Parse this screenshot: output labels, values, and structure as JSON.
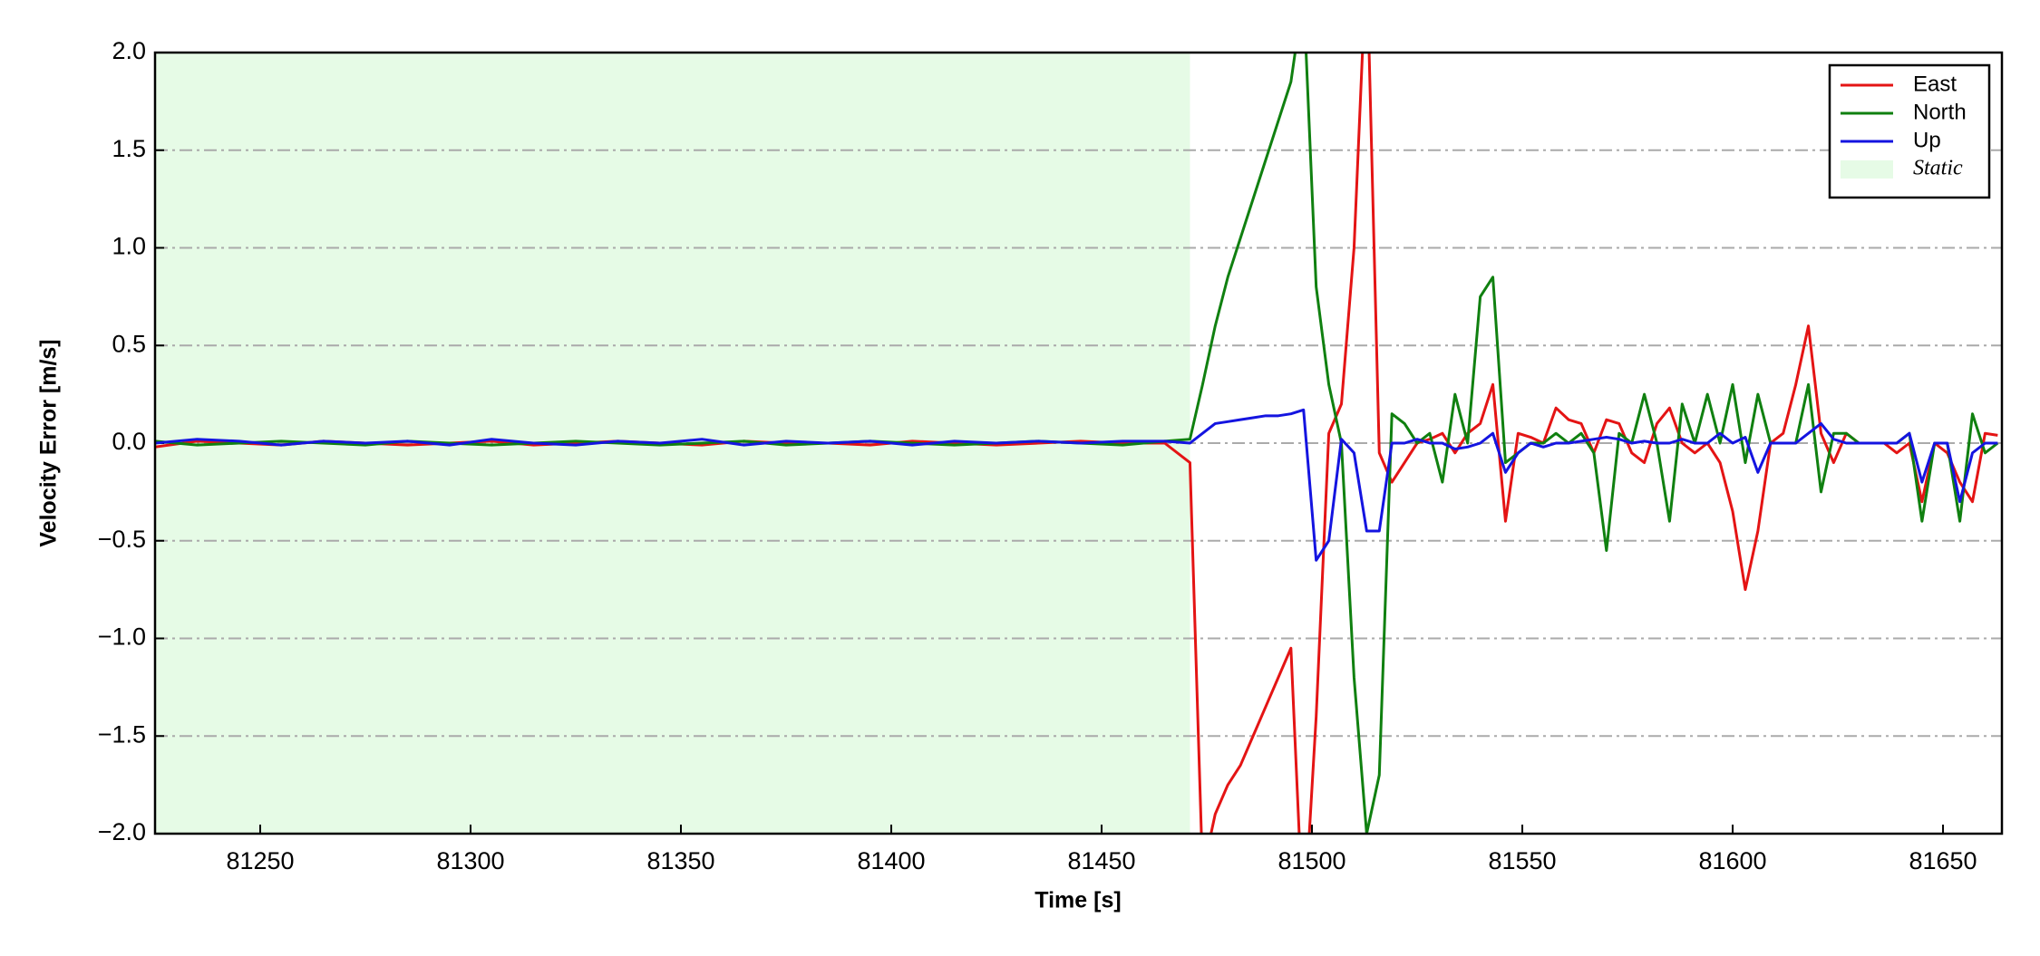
{
  "chart_data": {
    "type": "line",
    "x_label": "Time [s]",
    "y_label": "Velocity Error [m/s]",
    "xlim": [
      81225,
      81664
    ],
    "ylim": [
      -2,
      2
    ],
    "xticks": [
      81250,
      81300,
      81350,
      81400,
      81450,
      81500,
      81550,
      81600,
      81650
    ],
    "yticks": [
      {
        "value": -2,
        "label": "−2.0"
      },
      {
        "value": -1.5,
        "label": "−1.5"
      },
      {
        "value": -1,
        "label": "−1.0"
      },
      {
        "value": -0.5,
        "label": "−0.5"
      },
      {
        "value": 0,
        "label": "0.0"
      },
      0.5,
      {
        "value": 1,
        "label": "1.0"
      },
      1.5,
      {
        "value": 2,
        "label": "2.0"
      }
    ],
    "grid": true,
    "legend": "upper right",
    "shaded_region": {
      "name": "Static",
      "x": [
        81225,
        81471
      ],
      "color": "#e6fbe6"
    },
    "x": [
      81225,
      81235,
      81245,
      81255,
      81265,
      81275,
      81285,
      81295,
      81305,
      81315,
      81325,
      81335,
      81345,
      81355,
      81365,
      81375,
      81385,
      81395,
      81405,
      81415,
      81425,
      81435,
      81445,
      81455,
      81465,
      81471,
      81474,
      81477,
      81480,
      81483,
      81486,
      81489,
      81492,
      81495,
      81498,
      81501,
      81504,
      81507,
      81510,
      81513,
      81516,
      81519,
      81522,
      81525,
      81528,
      81531,
      81534,
      81537,
      81540,
      81543,
      81546,
      81549,
      81552,
      81555,
      81558,
      81561,
      81564,
      81567,
      81570,
      81573,
      81576,
      81579,
      81582,
      81585,
      81588,
      81591,
      81594,
      81597,
      81600,
      81603,
      81606,
      81609,
      81612,
      81615,
      81618,
      81621,
      81624,
      81627,
      81630,
      81633,
      81636,
      81639,
      81642,
      81645,
      81648,
      81651,
      81654,
      81657,
      81660,
      81663
    ],
    "series": [
      {
        "name": "East",
        "color": "#e41414",
        "values": [
          -0.02,
          0.01,
          0,
          -0.01,
          0.01,
          0,
          -0.01,
          0,
          0.01,
          -0.01,
          0,
          0.01,
          0,
          -0.01,
          0.01,
          0,
          0,
          -0.01,
          0.01,
          0,
          -0.01,
          0,
          0.01,
          0,
          0,
          -0.1,
          -2.2,
          -1.9,
          -1.75,
          -1.65,
          -1.5,
          -1.35,
          -1.2,
          -1.05,
          -2.5,
          -1.4,
          0.05,
          0.2,
          1.0,
          2.5,
          -0.05,
          -0.2,
          -0.1,
          0,
          0.02,
          0.05,
          -0.05,
          0.05,
          0.1,
          0.3,
          -0.4,
          0.05,
          0.03,
          0,
          0.18,
          0.12,
          0.1,
          -0.05,
          0.12,
          0.1,
          -0.05,
          -0.1,
          0.1,
          0.18,
          0,
          -0.05,
          0,
          -0.1,
          -0.35,
          -0.75,
          -0.45,
          0,
          0.05,
          0.3,
          0.6,
          0.05,
          -0.1,
          0.05,
          0,
          0,
          0,
          -0.05,
          0,
          -0.3,
          0,
          -0.05,
          -0.2,
          -0.3,
          0.05,
          0.04
        ]
      },
      {
        "name": "North",
        "color": "#108010",
        "values": [
          0.01,
          -0.01,
          0,
          0.01,
          0,
          -0.01,
          0.01,
          0,
          -0.01,
          0,
          0.01,
          0,
          -0.01,
          0,
          0.01,
          -0.01,
          0,
          0.01,
          0,
          -0.01,
          0,
          0.01,
          0,
          -0.01,
          0.01,
          0.02,
          0.3,
          0.6,
          0.85,
          1.05,
          1.25,
          1.45,
          1.65,
          1.85,
          2.3,
          0.8,
          0.3,
          0,
          -1.2,
          -2.0,
          -1.7,
          0.15,
          0.1,
          0,
          0.05,
          -0.2,
          0.25,
          0,
          0.75,
          0.85,
          -0.1,
          -0.05,
          0,
          0,
          0.05,
          0,
          0.05,
          -0.05,
          -0.55,
          0.05,
          0,
          0.25,
          0,
          -0.4,
          0.2,
          0,
          0.25,
          0,
          0.3,
          -0.1,
          0.25,
          0,
          0,
          0,
          0.3,
          -0.25,
          0.05,
          0.05,
          0,
          0,
          0,
          0,
          0.05,
          -0.4,
          0,
          0,
          -0.4,
          0.15,
          -0.05,
          0
        ]
      },
      {
        "name": "Up",
        "color": "#1414e0",
        "values": [
          0,
          0.02,
          0.01,
          -0.01,
          0.01,
          0,
          0.01,
          -0.01,
          0.02,
          0,
          -0.01,
          0.01,
          0,
          0.02,
          -0.01,
          0.01,
          0,
          0.01,
          -0.01,
          0.01,
          0,
          0.01,
          0,
          0.01,
          0.01,
          0,
          0.05,
          0.1,
          0.11,
          0.12,
          0.13,
          0.14,
          0.14,
          0.15,
          0.17,
          -0.6,
          -0.5,
          0.02,
          -0.05,
          -0.45,
          -0.45,
          0,
          0,
          0.02,
          0,
          0,
          -0.03,
          -0.02,
          0,
          0.05,
          -0.15,
          -0.05,
          0,
          -0.02,
          0,
          0,
          0.01,
          0.02,
          0.03,
          0.02,
          0,
          0.01,
          0,
          0,
          0.02,
          0,
          0,
          0.05,
          0,
          0.03,
          -0.15,
          0,
          0,
          0,
          0.05,
          0.1,
          0.02,
          0,
          0,
          0,
          0,
          0,
          0.05,
          -0.2,
          0,
          0,
          -0.3,
          -0.05,
          0,
          0
        ]
      }
    ]
  }
}
